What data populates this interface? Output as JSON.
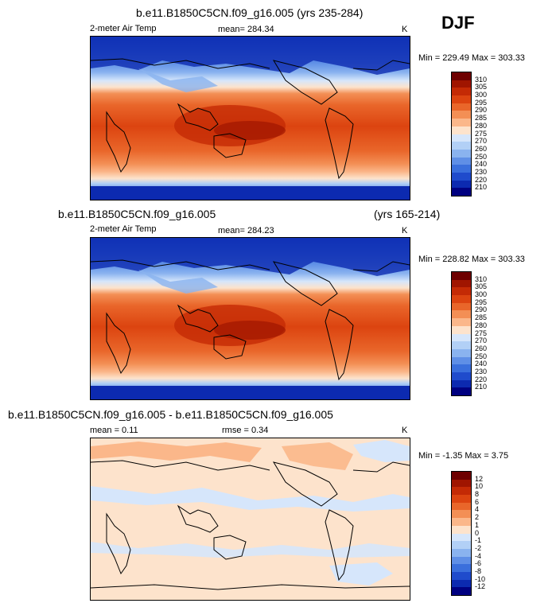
{
  "season": "DJF",
  "panels": [
    {
      "title": "b.e11.B1850C5CN.f09_g16.005 (yrs 235-284)",
      "variable": "2-meter Air Temp",
      "mean_label": "mean= 284.34",
      "units": "K",
      "minmax": "Min = 229.49 Max = 303.33",
      "colorbar": {
        "labels": [
          "310",
          "305",
          "300",
          "295",
          "290",
          "285",
          "280",
          "275",
          "270",
          "260",
          "250",
          "240",
          "230",
          "220",
          "210"
        ],
        "colors": [
          "#6e0000",
          "#a01500",
          "#c42a05",
          "#dc4410",
          "#e9662a",
          "#f38f55",
          "#fbb78a",
          "#fde3cc",
          "#d6e6fb",
          "#b2d0f6",
          "#8ab3ef",
          "#5f8fe6",
          "#3a6fdc",
          "#1f4bcc",
          "#0c2ab0",
          "#000080"
        ]
      }
    },
    {
      "title_left": "b.e11.B1850C5CN.f09_g16.005",
      "title_right": "(yrs 165-214)",
      "variable": "2-meter Air Temp",
      "mean_label": "mean= 284.23",
      "units": "K",
      "minmax": "Min = 228.82 Max = 303.33",
      "colorbar": {
        "labels": [
          "310",
          "305",
          "300",
          "295",
          "290",
          "285",
          "280",
          "275",
          "270",
          "260",
          "250",
          "240",
          "230",
          "220",
          "210"
        ],
        "colors": [
          "#6e0000",
          "#a01500",
          "#c42a05",
          "#dc4410",
          "#e9662a",
          "#f38f55",
          "#fbb78a",
          "#fde3cc",
          "#d6e6fb",
          "#b2d0f6",
          "#8ab3ef",
          "#5f8fe6",
          "#3a6fdc",
          "#1f4bcc",
          "#0c2ab0",
          "#000080"
        ]
      }
    },
    {
      "title": "b.e11.B1850C5CN.f09_g16.005 - b.e11.B1850C5CN.f09_g16.005",
      "mean_label": "mean =  0.11",
      "rmse_label": "rmse =   0.34",
      "units": "K",
      "minmax": "Min =  -1.35 Max =   3.75",
      "colorbar": {
        "labels": [
          "12",
          "10",
          "8",
          "6",
          "4",
          "2",
          "1",
          "0",
          "-1",
          "-2",
          "-4",
          "-6",
          "-8",
          "-10",
          "-12"
        ],
        "colors": [
          "#6e0000",
          "#a01500",
          "#c42a05",
          "#dc4410",
          "#e9662a",
          "#f38f55",
          "#fbb78a",
          "#fde3cc",
          "#d6e6fb",
          "#b2d0f6",
          "#8ab3ef",
          "#5f8fe6",
          "#3a6fdc",
          "#1f4bcc",
          "#0c2ab0",
          "#000080"
        ]
      }
    }
  ]
}
